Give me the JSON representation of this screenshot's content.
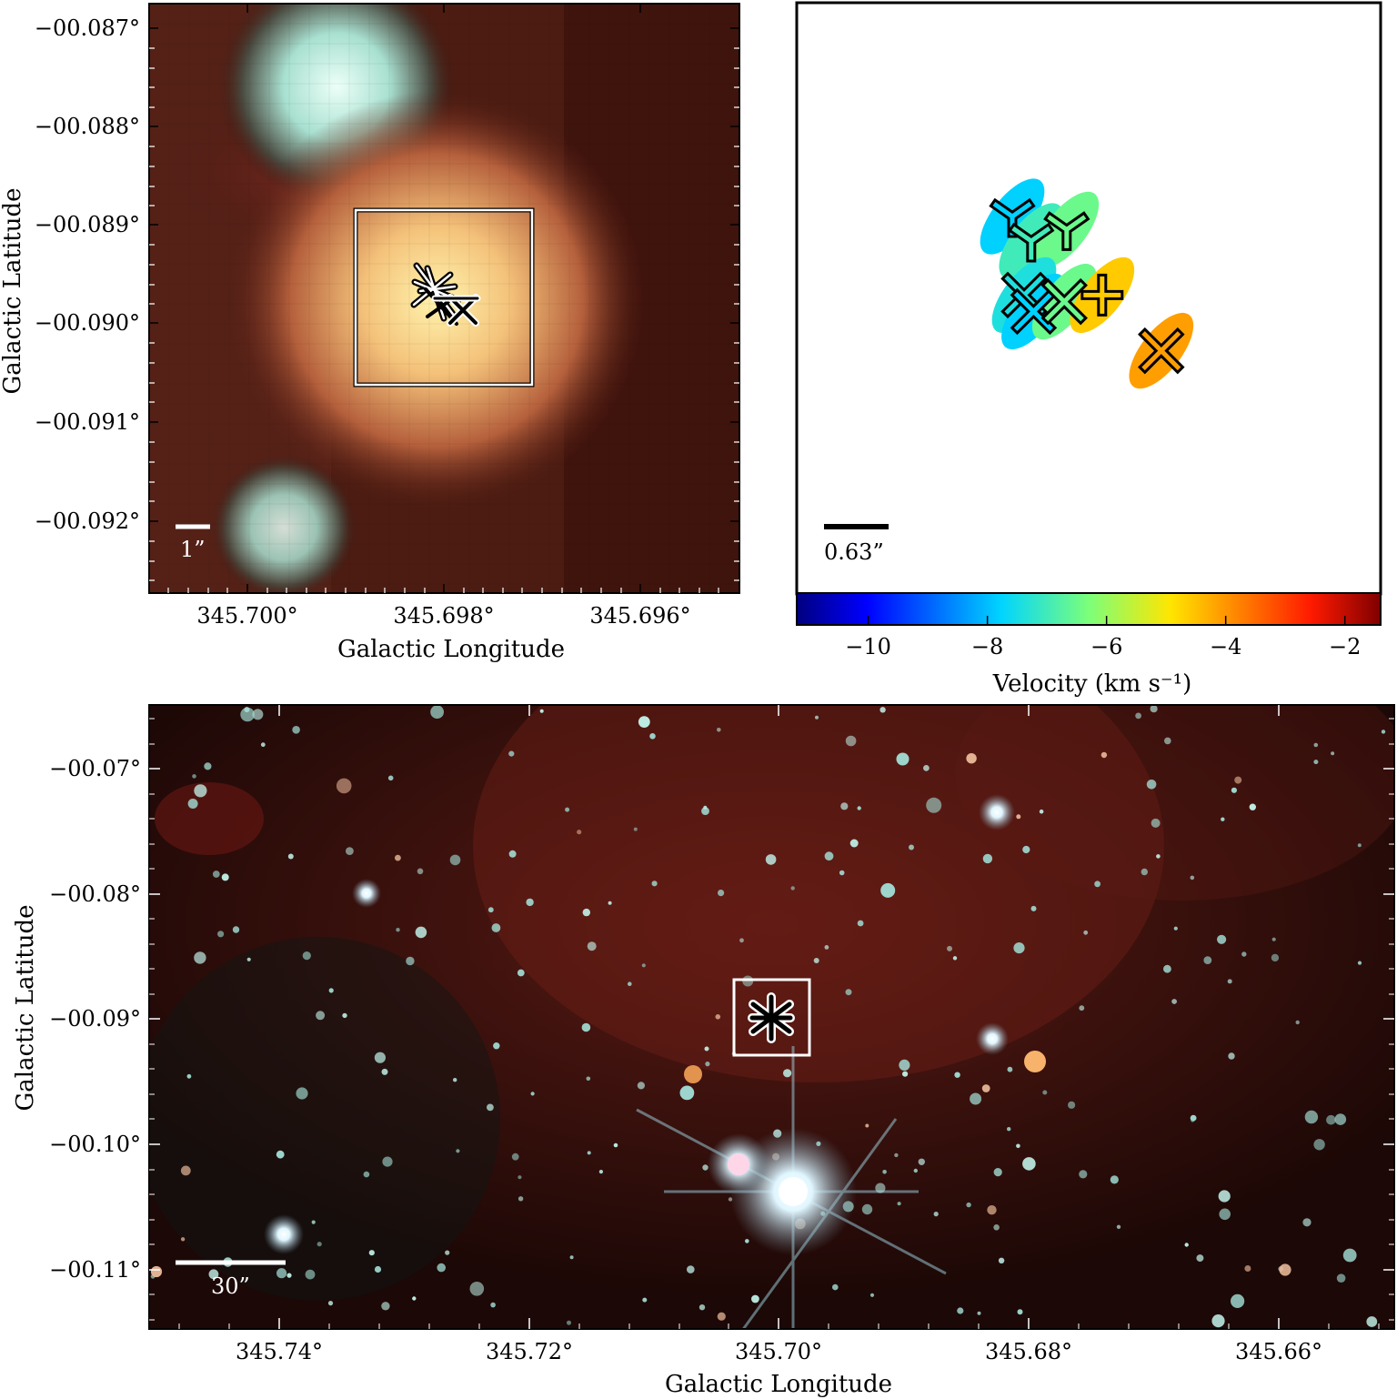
{
  "panels": {
    "zoom": {
      "xlabel": "Galactic Longitude",
      "ylabel": "Galactic Latitude",
      "xticks": [
        "345.700°",
        "345.698°",
        "345.696°"
      ],
      "yticks": [
        "−00.087°",
        "−00.088°",
        "−00.089°",
        "−00.090°",
        "−00.091°",
        "−00.092°"
      ],
      "scalebar": "1”"
    },
    "maser": {
      "scalebar": "0.63”",
      "colorbar_label": "Velocity (km s⁻¹)",
      "colorbar_ticks": [
        "−10",
        "−8",
        "−6",
        "−4",
        "−2"
      ],
      "colorbar_range": [
        -11.2,
        -1.4
      ]
    },
    "wide": {
      "xlabel": "Galactic Longitude",
      "ylabel": "Galactic Latitude",
      "xticks": [
        "345.74°",
        "345.72°",
        "345.70°",
        "345.68°",
        "345.66°"
      ],
      "yticks": [
        "−00.07°",
        "−00.08°",
        "−00.09°",
        "−00.10°",
        "−00.11°"
      ],
      "scalebar": "30”"
    }
  },
  "chart_data": [
    {
      "type": "scatter",
      "title": "",
      "xlabel": "Galactic Longitude",
      "ylabel": "Galactic Latitude",
      "xlim": [
        345.7013,
        345.695
      ],
      "ylim": [
        -0.09275,
        -0.08675
      ],
      "note_x_ticks": [
        345.7,
        345.698,
        345.696
      ],
      "note_y_ticks": [
        -0.087,
        -0.088,
        -0.089,
        -0.09,
        -0.091,
        -0.092
      ],
      "points": [
        {
          "x": 345.6979,
          "y": -0.08975,
          "marker": "cross"
        },
        {
          "x": 345.6977,
          "y": -0.0899,
          "marker": "x"
        }
      ]
    },
    {
      "type": "scatter",
      "xlabel": "",
      "ylabel": "",
      "color_axis": "Velocity (km s⁻¹)",
      "clim": [
        -11.2,
        -1.4
      ],
      "points": [
        {
          "x": 0.05,
          "y": 0.9,
          "v": -7.8,
          "marker": "tri"
        },
        {
          "x": 0.13,
          "y": 0.75,
          "v": -7.0,
          "marker": "tri"
        },
        {
          "x": 0.28,
          "y": 0.82,
          "v": -6.5,
          "marker": "tri"
        },
        {
          "x": 0.1,
          "y": 0.42,
          "v": -7.4,
          "marker": "x"
        },
        {
          "x": 0.14,
          "y": 0.32,
          "v": -7.8,
          "marker": "x"
        },
        {
          "x": 0.27,
          "y": 0.38,
          "v": -6.5,
          "marker": "x"
        },
        {
          "x": 0.43,
          "y": 0.42,
          "v": -4.6,
          "marker": "plus"
        },
        {
          "x": 0.68,
          "y": 0.08,
          "v": -4.1,
          "marker": "x"
        }
      ]
    },
    {
      "type": "scatter",
      "xlabel": "Galactic Longitude",
      "ylabel": "Galactic Latitude",
      "xlim": [
        345.7505,
        345.6505
      ],
      "ylim": [
        -0.1148,
        -0.0658
      ],
      "note_x_ticks": [
        345.74,
        345.72,
        345.7,
        345.68,
        345.66
      ],
      "note_y_ticks": [
        -0.07,
        -0.08,
        -0.09,
        -0.1,
        -0.11
      ],
      "points": [
        {
          "x": 345.6977,
          "y": -0.0898,
          "marker": "asterisk"
        }
      ]
    }
  ],
  "colors": {
    "frame": "#000000",
    "annotation": "#ffffff",
    "nebula_dark": "#2a0c08",
    "source_bright": "#fff3a8"
  }
}
